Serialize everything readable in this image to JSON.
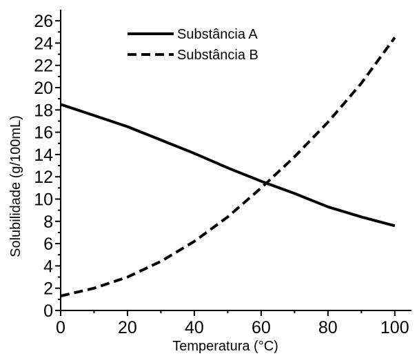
{
  "chart_data": {
    "type": "line",
    "title": "",
    "xlabel": "Temperatura (°C)",
    "ylabel": "Solubilidade (g/100mL)",
    "xlim": [
      0,
      105
    ],
    "ylim": [
      0,
      27
    ],
    "x_ticks": [
      0,
      20,
      40,
      60,
      80,
      100
    ],
    "y_ticks": [
      0,
      2,
      4,
      6,
      8,
      10,
      12,
      14,
      16,
      18,
      20,
      22,
      24,
      26
    ],
    "x_minor_step": 10,
    "y_minor_step": 1,
    "grid": false,
    "legend_position": "top",
    "series": [
      {
        "name": "Substância A",
        "line_style": "solid",
        "color": "#000000",
        "points": [
          [
            0,
            18.5
          ],
          [
            10,
            17.5
          ],
          [
            20,
            16.5
          ],
          [
            30,
            15.3
          ],
          [
            40,
            14.1
          ],
          [
            50,
            12.8
          ],
          [
            60,
            11.6
          ],
          [
            70,
            10.5
          ],
          [
            80,
            9.3
          ],
          [
            90,
            8.4
          ],
          [
            100,
            7.6
          ]
        ]
      },
      {
        "name": "Substância B",
        "line_style": "dashed",
        "color": "#000000",
        "points": [
          [
            0,
            1.3
          ],
          [
            10,
            2.0
          ],
          [
            20,
            3.0
          ],
          [
            30,
            4.4
          ],
          [
            40,
            6.2
          ],
          [
            50,
            8.4
          ],
          [
            60,
            11.0
          ],
          [
            70,
            13.8
          ],
          [
            80,
            16.9
          ],
          [
            90,
            20.4
          ],
          [
            100,
            24.5
          ]
        ]
      }
    ]
  }
}
